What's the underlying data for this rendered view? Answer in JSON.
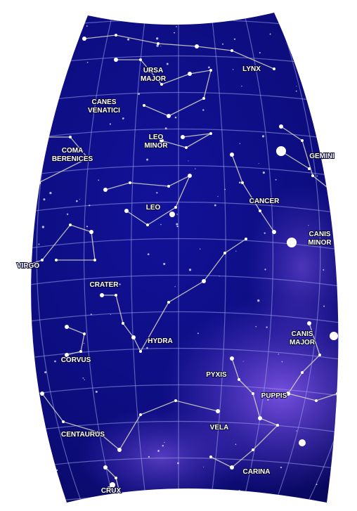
{
  "constellations": [
    {
      "lines": [
        "URSA",
        "MAJOR"
      ]
    },
    {
      "lines": [
        "LYNX"
      ]
    },
    {
      "lines": [
        "CANES",
        "VENATICI"
      ]
    },
    {
      "lines": [
        "LEO",
        "MINOR"
      ]
    },
    {
      "lines": [
        "COMA",
        "BERENICES"
      ]
    },
    {
      "lines": [
        "GEMINI"
      ]
    },
    {
      "lines": [
        "LEO"
      ]
    },
    {
      "lines": [
        "CANCER"
      ]
    },
    {
      "lines": [
        "CANIS",
        "MINOR"
      ]
    },
    {
      "lines": [
        "VIRGO"
      ]
    },
    {
      "lines": [
        "CRATER"
      ]
    },
    {
      "lines": [
        "HYDRA"
      ]
    },
    {
      "lines": [
        "CANIS",
        "MAJOR"
      ]
    },
    {
      "lines": [
        "CORVUS"
      ]
    },
    {
      "lines": [
        "PYXIS"
      ]
    },
    {
      "lines": [
        "PUPPIS"
      ]
    },
    {
      "lines": [
        "VELA"
      ]
    },
    {
      "lines": [
        "CENTAURUS"
      ]
    },
    {
      "lines": [
        "CARINA"
      ]
    },
    {
      "lines": [
        "CRUX"
      ]
    }
  ]
}
